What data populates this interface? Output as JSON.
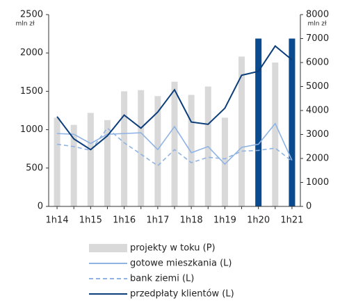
{
  "chart_data": {
    "type": "combo",
    "ylabel": "mln zł",
    "y2label": "mln zł",
    "categories": [
      "1h14",
      null,
      "1h15",
      null,
      "1h16",
      null,
      "1h17",
      null,
      "1h18",
      null,
      "1h19",
      null,
      "1h20",
      null,
      "1h21"
    ],
    "ylim": [
      0,
      2500
    ],
    "yticks": [
      0,
      500,
      1000,
      1500,
      2000,
      2500
    ],
    "y2lim": [
      0,
      8000
    ],
    "y2ticks": [
      0,
      1000,
      2000,
      3000,
      4000,
      5000,
      6000,
      7000,
      8000
    ],
    "series": [
      {
        "name": "projekty w toku (P)",
        "type": "bar",
        "axis": "y2",
        "colors": [
          "#d9d9d9",
          "#d9d9d9",
          "#d9d9d9",
          "#d9d9d9",
          "#d9d9d9",
          "#d9d9d9",
          "#d9d9d9",
          "#d9d9d9",
          "#d9d9d9",
          "#d9d9d9",
          "#d9d9d9",
          "#d9d9d9",
          "#0a4a8f",
          "#d9d9d9",
          "#0a4a8f"
        ],
        "values": [
          3700,
          3400,
          3900,
          3600,
          4800,
          4850,
          4600,
          5200,
          4650,
          5000,
          3700,
          6250,
          7000,
          6000,
          7000
        ]
      },
      {
        "name": "gotowe mieszkania (L)",
        "type": "line",
        "color": "#8fb3e3",
        "dash": false,
        "values": [
          950,
          940,
          820,
          940,
          950,
          960,
          740,
          1040,
          700,
          780,
          550,
          770,
          810,
          1080,
          600
        ]
      },
      {
        "name": "bank ziemi (L)",
        "type": "line",
        "color": "#8fb3e3",
        "dash": true,
        "values": [
          810,
          780,
          730,
          1020,
          830,
          680,
          530,
          740,
          570,
          640,
          620,
          720,
          730,
          760,
          590
        ]
      },
      {
        "name": "przedpłaty klientów (L)",
        "type": "line",
        "color": "#0a3d7a",
        "dash": false,
        "values": [
          1170,
          880,
          740,
          920,
          1190,
          1020,
          1230,
          1520,
          1100,
          1070,
          1280,
          1710,
          1760,
          2090,
          1910
        ]
      }
    ]
  }
}
